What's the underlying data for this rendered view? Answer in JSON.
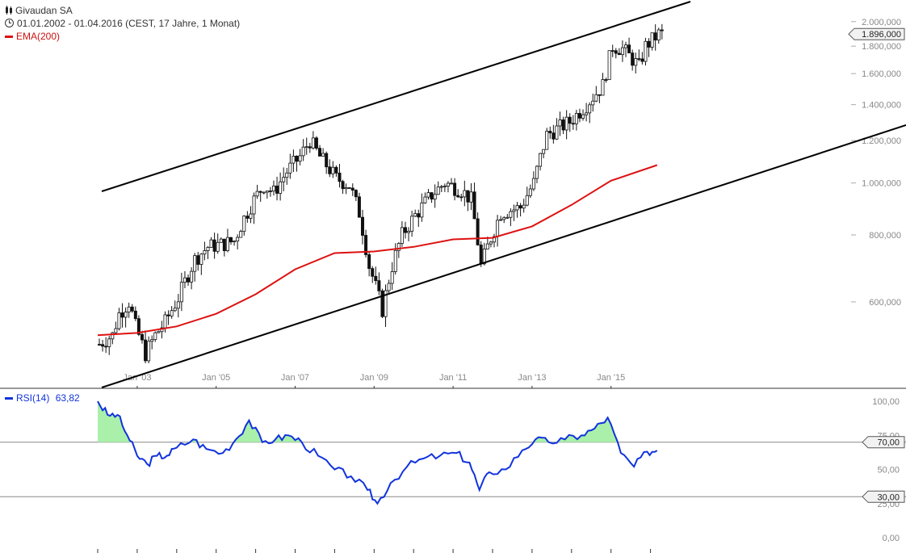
{
  "header": {
    "title": "Givaudan SA",
    "range": "01.01.2002 - 01.04.2016 (CEST, 17 Jahre, 1 Monat)",
    "indicator": "EMA(200)",
    "rsi_label": "RSI(14)",
    "rsi_value": "63,82"
  },
  "colors": {
    "ema": "#dd1111",
    "rsi": "#1133dd",
    "rsi_fill": "#aaf0aa",
    "trendline": "#000000",
    "candle": "#111111",
    "axis_text": "#888888"
  },
  "chart_data": [
    {
      "type": "candlestick",
      "y_scale": "log",
      "ylim": [
        430000,
        2120000
      ],
      "x_range": [
        "2002-01",
        "2016-04"
      ],
      "x_ticks": [
        "Jan '03",
        "Jan '05",
        "Jan '07",
        "Jan '09",
        "Jan '11",
        "Jan '13",
        "Jan '15"
      ],
      "y_ticks": [
        {
          "value": 2000000,
          "label": "2.000,000"
        },
        {
          "value": 1800000,
          "label": "1.800,000"
        },
        {
          "value": 1600000,
          "label": "1.600,000"
        },
        {
          "value": 1400000,
          "label": "1.400,000"
        },
        {
          "value": 1200000,
          "label": "1.200,000"
        },
        {
          "value": 1000000,
          "label": "1.000,000"
        },
        {
          "value": 800000,
          "label": "800,000"
        },
        {
          "value": 600000,
          "label": "600,000"
        }
      ],
      "last_price": {
        "value": 1896000,
        "label": "1.896,000"
      },
      "close_path": [
        [
          "2002-01",
          500000
        ],
        [
          "2002-05",
          520000
        ],
        [
          "2002-07",
          570000
        ],
        [
          "2002-10",
          600000
        ],
        [
          "2002-12",
          540000
        ],
        [
          "2003-03",
          480000
        ],
        [
          "2003-06",
          520000
        ],
        [
          "2003-09",
          550000
        ],
        [
          "2004-01",
          610000
        ],
        [
          "2004-06",
          720000
        ],
        [
          "2004-10",
          760000
        ],
        [
          "2005-03",
          770000
        ],
        [
          "2005-06",
          780000
        ],
        [
          "2005-09",
          860000
        ],
        [
          "2005-12",
          930000
        ],
        [
          "2006-03",
          990000
        ],
        [
          "2006-06",
          960000
        ],
        [
          "2006-10",
          1050000
        ],
        [
          "2007-02",
          1120000
        ],
        [
          "2007-05",
          1200000
        ],
        [
          "2007-08",
          1120000
        ],
        [
          "2008-01",
          1020000
        ],
        [
          "2008-05",
          990000
        ],
        [
          "2008-08",
          880000
        ],
        [
          "2008-11",
          700000
        ],
        [
          "2009-03",
          580000
        ],
        [
          "2009-06",
          700000
        ],
        [
          "2009-09",
          800000
        ],
        [
          "2010-01",
          870000
        ],
        [
          "2010-06",
          950000
        ],
        [
          "2010-10",
          1000000
        ],
        [
          "2011-03",
          970000
        ],
        [
          "2011-06",
          930000
        ],
        [
          "2011-09",
          700000
        ],
        [
          "2011-12",
          790000
        ],
        [
          "2012-03",
          880000
        ],
        [
          "2012-09",
          900000
        ],
        [
          "2013-01",
          1000000
        ],
        [
          "2013-05",
          1230000
        ],
        [
          "2013-12",
          1300000
        ],
        [
          "2014-05",
          1400000
        ],
        [
          "2014-10",
          1520000
        ],
        [
          "2015-01",
          1800000
        ],
        [
          "2015-04",
          1780000
        ],
        [
          "2015-09",
          1650000
        ],
        [
          "2015-11",
          1800000
        ],
        [
          "2016-03",
          1896000
        ]
      ]
    },
    {
      "type": "line",
      "series": [
        {
          "name": "EMA(200)"
        }
      ],
      "points": [
        [
          "2002-01",
          520000
        ],
        [
          "2003-01",
          525000
        ],
        [
          "2004-01",
          540000
        ],
        [
          "2005-01",
          570000
        ],
        [
          "2006-01",
          620000
        ],
        [
          "2007-01",
          690000
        ],
        [
          "2008-01",
          740000
        ],
        [
          "2009-01",
          745000
        ],
        [
          "2010-01",
          760000
        ],
        [
          "2011-01",
          785000
        ],
        [
          "2012-01",
          790000
        ],
        [
          "2013-01",
          830000
        ],
        [
          "2014-01",
          910000
        ],
        [
          "2015-01",
          1010000
        ],
        [
          "2016-03",
          1080000
        ]
      ]
    },
    {
      "type": "line",
      "series": [
        {
          "name": "RSI(14)"
        }
      ],
      "ylim": [
        0,
        100
      ],
      "y_ticks": [
        {
          "value": 100,
          "label": "100,00"
        },
        {
          "value": 75,
          "label": "75,00"
        },
        {
          "value": 50,
          "label": "50,00"
        },
        {
          "value": 25,
          "label": "25,00"
        },
        {
          "value": 0,
          "label": "0,00"
        }
      ],
      "levels": [
        {
          "value": 70,
          "label": "70,00"
        },
        {
          "value": 30,
          "label": "30,00"
        }
      ],
      "last": 63.82,
      "points": [
        [
          "2002-01",
          100
        ],
        [
          "2002-04",
          90
        ],
        [
          "2002-07",
          90
        ],
        [
          "2002-10",
          75
        ],
        [
          "2003-01",
          60
        ],
        [
          "2003-04",
          54
        ],
        [
          "2003-07",
          60
        ],
        [
          "2003-10",
          60
        ],
        [
          "2004-01",
          66
        ],
        [
          "2004-06",
          72
        ],
        [
          "2004-10",
          65
        ],
        [
          "2005-03",
          62
        ],
        [
          "2005-07",
          72
        ],
        [
          "2005-11",
          86
        ],
        [
          "2006-03",
          70
        ],
        [
          "2006-07",
          72
        ],
        [
          "2006-11",
          75
        ],
        [
          "2007-03",
          70
        ],
        [
          "2007-08",
          60
        ],
        [
          "2008-01",
          50
        ],
        [
          "2008-06",
          45
        ],
        [
          "2008-11",
          35
        ],
        [
          "2009-02",
          25
        ],
        [
          "2009-06",
          40
        ],
        [
          "2009-11",
          52
        ],
        [
          "2010-04",
          58
        ],
        [
          "2010-09",
          60
        ],
        [
          "2011-02",
          62
        ],
        [
          "2011-06",
          55
        ],
        [
          "2011-09",
          35
        ],
        [
          "2011-12",
          48
        ],
        [
          "2012-05",
          50
        ],
        [
          "2012-10",
          64
        ],
        [
          "2013-02",
          72
        ],
        [
          "2013-06",
          70
        ],
        [
          "2013-11",
          72
        ],
        [
          "2014-04",
          75
        ],
        [
          "2014-08",
          80
        ],
        [
          "2014-12",
          88
        ],
        [
          "2015-04",
          62
        ],
        [
          "2015-08",
          52
        ],
        [
          "2015-12",
          63
        ],
        [
          "2016-03",
          63.82
        ]
      ]
    }
  ]
}
